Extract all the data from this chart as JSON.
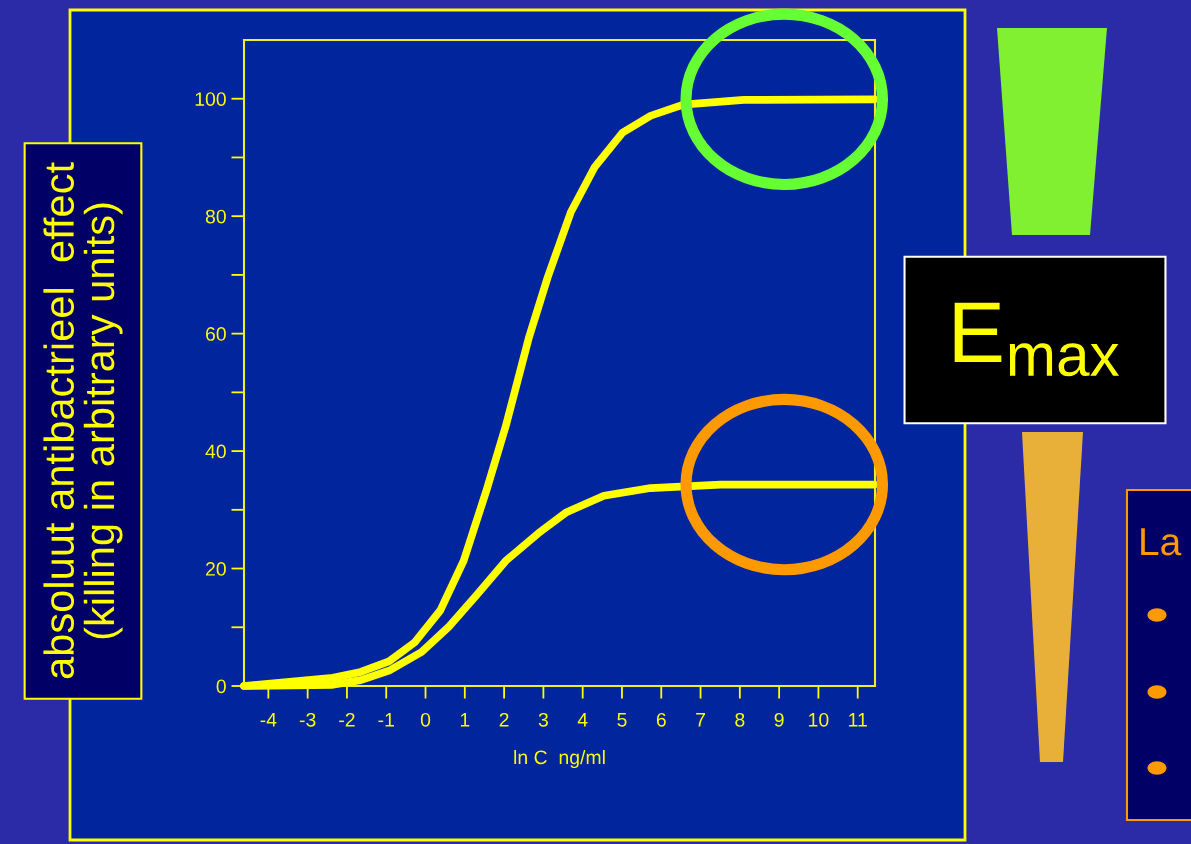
{
  "chart_data": {
    "type": "line",
    "xlabel": "ln C  ng/ml",
    "ylabel": "absoluut antibactrieel  effect\n(killing in arbitrary units)",
    "series": [
      {
        "color": "#ffff00",
        "x": [
          -4.62,
          -2.36,
          -1.65,
          -0.93,
          -0.28,
          0.38,
          0.97,
          1.56,
          2.04,
          2.63,
          3.11,
          3.7,
          4.3,
          5.01,
          5.73,
          6.56,
          8.1,
          11.43
        ],
        "values": [
          0,
          1.4,
          2.4,
          4.2,
          7.4,
          12.9,
          21.3,
          33.5,
          44.2,
          59.3,
          69.6,
          80.7,
          88.3,
          94.2,
          97.1,
          99.0,
          99.8,
          99.9
        ]
      },
      {
        "color": "#ffff00",
        "x": [
          -4.62,
          -2.36,
          -1.65,
          -0.93,
          -0.1,
          0.61,
          1.33,
          2.04,
          2.87,
          3.59,
          4.54,
          5.73,
          7.51,
          11.43
        ],
        "values": [
          0,
          0.2,
          1.0,
          2.6,
          5.8,
          10.2,
          15.7,
          21.3,
          26.0,
          29.6,
          32.4,
          33.7,
          34.3,
          34.3
        ]
      }
    ],
    "xlim": [
      -4.62,
      11.44
    ],
    "ylim": [
      0,
      110
    ],
    "xticks": [
      -4,
      -3,
      -2,
      -1,
      0,
      1,
      2,
      3,
      4,
      5,
      6,
      7,
      8,
      9,
      10,
      11
    ],
    "yticks": [
      0,
      {
        "value": 10,
        "label": null
      },
      20,
      {
        "value": 30,
        "label": null
      },
      40,
      {
        "value": 50,
        "label": null
      },
      60,
      {
        "value": 70,
        "label": null
      },
      80,
      {
        "value": 90,
        "label": null
      },
      100
    ],
    "line_style": "solid",
    "annotations": [
      "E$_{max}$",
      "La"
    ]
  }
}
